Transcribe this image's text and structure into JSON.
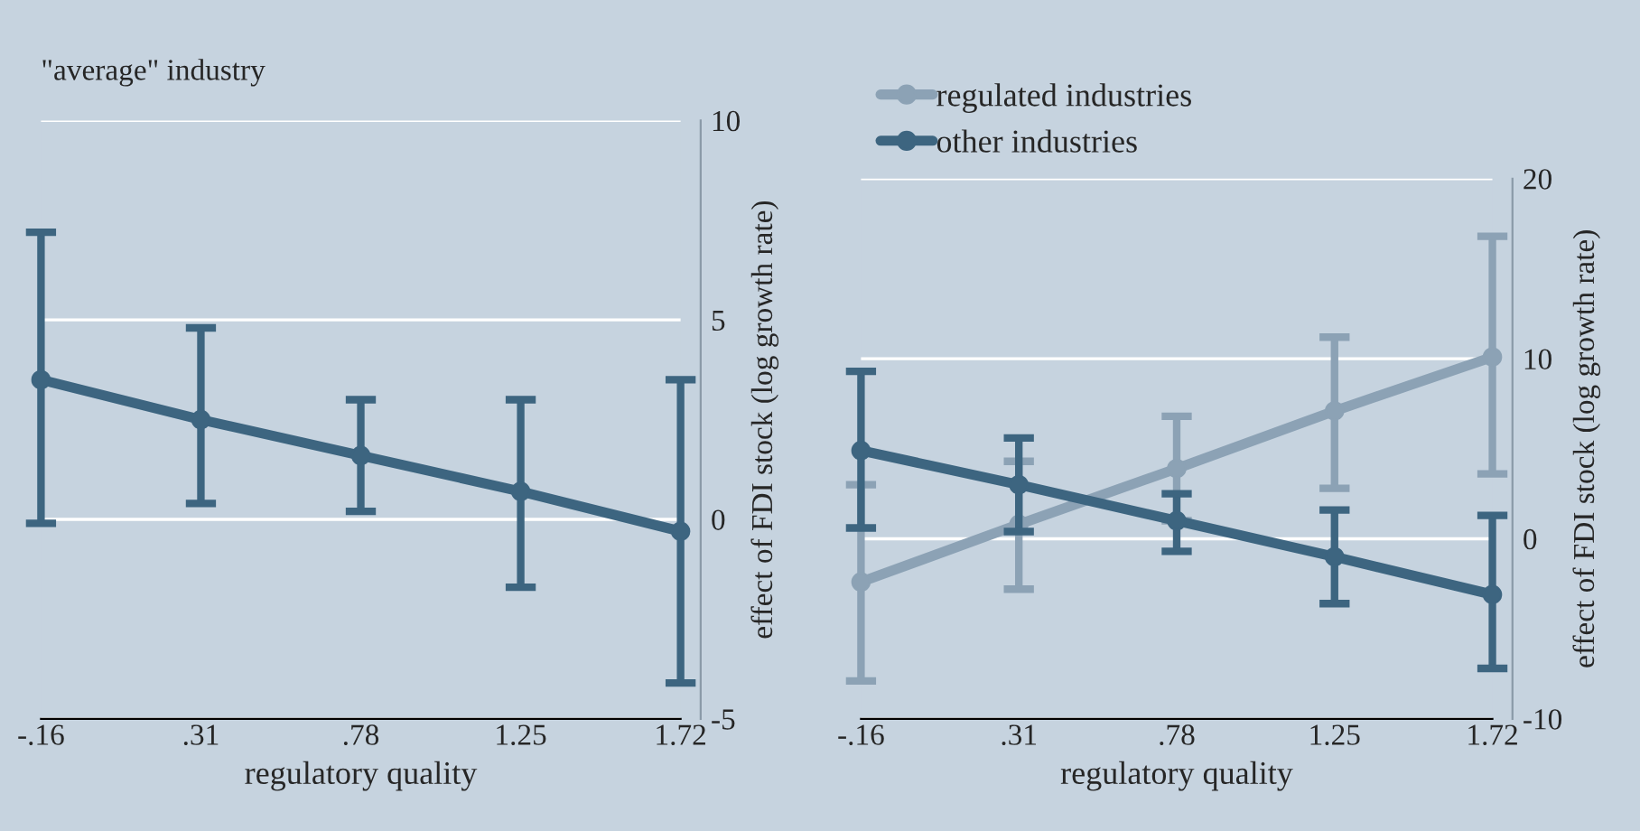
{
  "chart_data": [
    {
      "type": "line",
      "annotations": [
        "\"average\" industry"
      ],
      "xlabel": "regulatory quality",
      "ylabel": "effect of FDI stock (log growth rate)",
      "x": [
        -0.16,
        0.31,
        0.78,
        1.25,
        1.72
      ],
      "xlim": [
        -0.16,
        1.72
      ],
      "xticks": [
        {
          "value": -0.16,
          "label": "-.16"
        },
        {
          "value": 0.31,
          "label": ".31"
        },
        {
          "value": 0.78,
          "label": ".78"
        },
        {
          "value": 1.25,
          "label": "1.25"
        },
        {
          "value": 1.72,
          "label": "1.72"
        }
      ],
      "ylim": [
        -5,
        10
      ],
      "yticks": [
        {
          "value": -5,
          "label": "-5"
        },
        0,
        5,
        10
      ],
      "grid": "y",
      "marker": "circle",
      "line_style": "solid",
      "legend": false,
      "series": [
        {
          "color": "#3d6580",
          "values": [
            3.5,
            2.5,
            1.6,
            0.7,
            -0.3
          ],
          "errors": [
            [
              -0.1,
              7.2
            ],
            [
              0.4,
              4.8
            ],
            [
              0.2,
              3.0
            ],
            [
              -1.7,
              3.0
            ],
            [
              -4.1,
              3.5
            ]
          ]
        }
      ]
    },
    {
      "type": "line",
      "xlabel": "regulatory quality",
      "ylabel": "effect of FDI stock (log growth rate)",
      "x": [
        -0.16,
        0.31,
        0.78,
        1.25,
        1.72
      ],
      "xlim": [
        -0.16,
        1.72
      ],
      "xticks": [
        {
          "value": -0.16,
          "label": "-.16"
        },
        {
          "value": 0.31,
          "label": ".31"
        },
        {
          "value": 0.78,
          "label": ".78"
        },
        {
          "value": 1.25,
          "label": "1.25"
        },
        {
          "value": 1.72,
          "label": "1.72"
        }
      ],
      "ylim": [
        -10,
        20
      ],
      "yticks": [
        {
          "value": -10,
          "label": "-10"
        },
        0,
        10,
        20
      ],
      "grid": "y",
      "marker": "circle",
      "line_style": "solid",
      "legend": "top left",
      "series": [
        {
          "name": "regulated industries",
          "color": "#8ca2b5",
          "values": [
            -2.4,
            0.8,
            3.9,
            7.1,
            10.1
          ],
          "errors": [
            [
              -7.9,
              3.0
            ],
            [
              -2.8,
              4.3
            ],
            2.9,
            [
              2.8,
              11.2
            ],
            [
              3.6,
              16.8
            ]
          ]
        },
        {
          "name": "other industries",
          "color": "#3d6580",
          "values": [
            4.9,
            3.0,
            1.0,
            -1.0,
            -3.1
          ],
          "errors": [
            [
              0.6,
              9.3
            ],
            [
              0.4,
              5.6
            ],
            [
              -0.7,
              2.5
            ],
            [
              -3.6,
              1.6
            ],
            [
              -7.2,
              1.3
            ]
          ]
        }
      ]
    }
  ]
}
